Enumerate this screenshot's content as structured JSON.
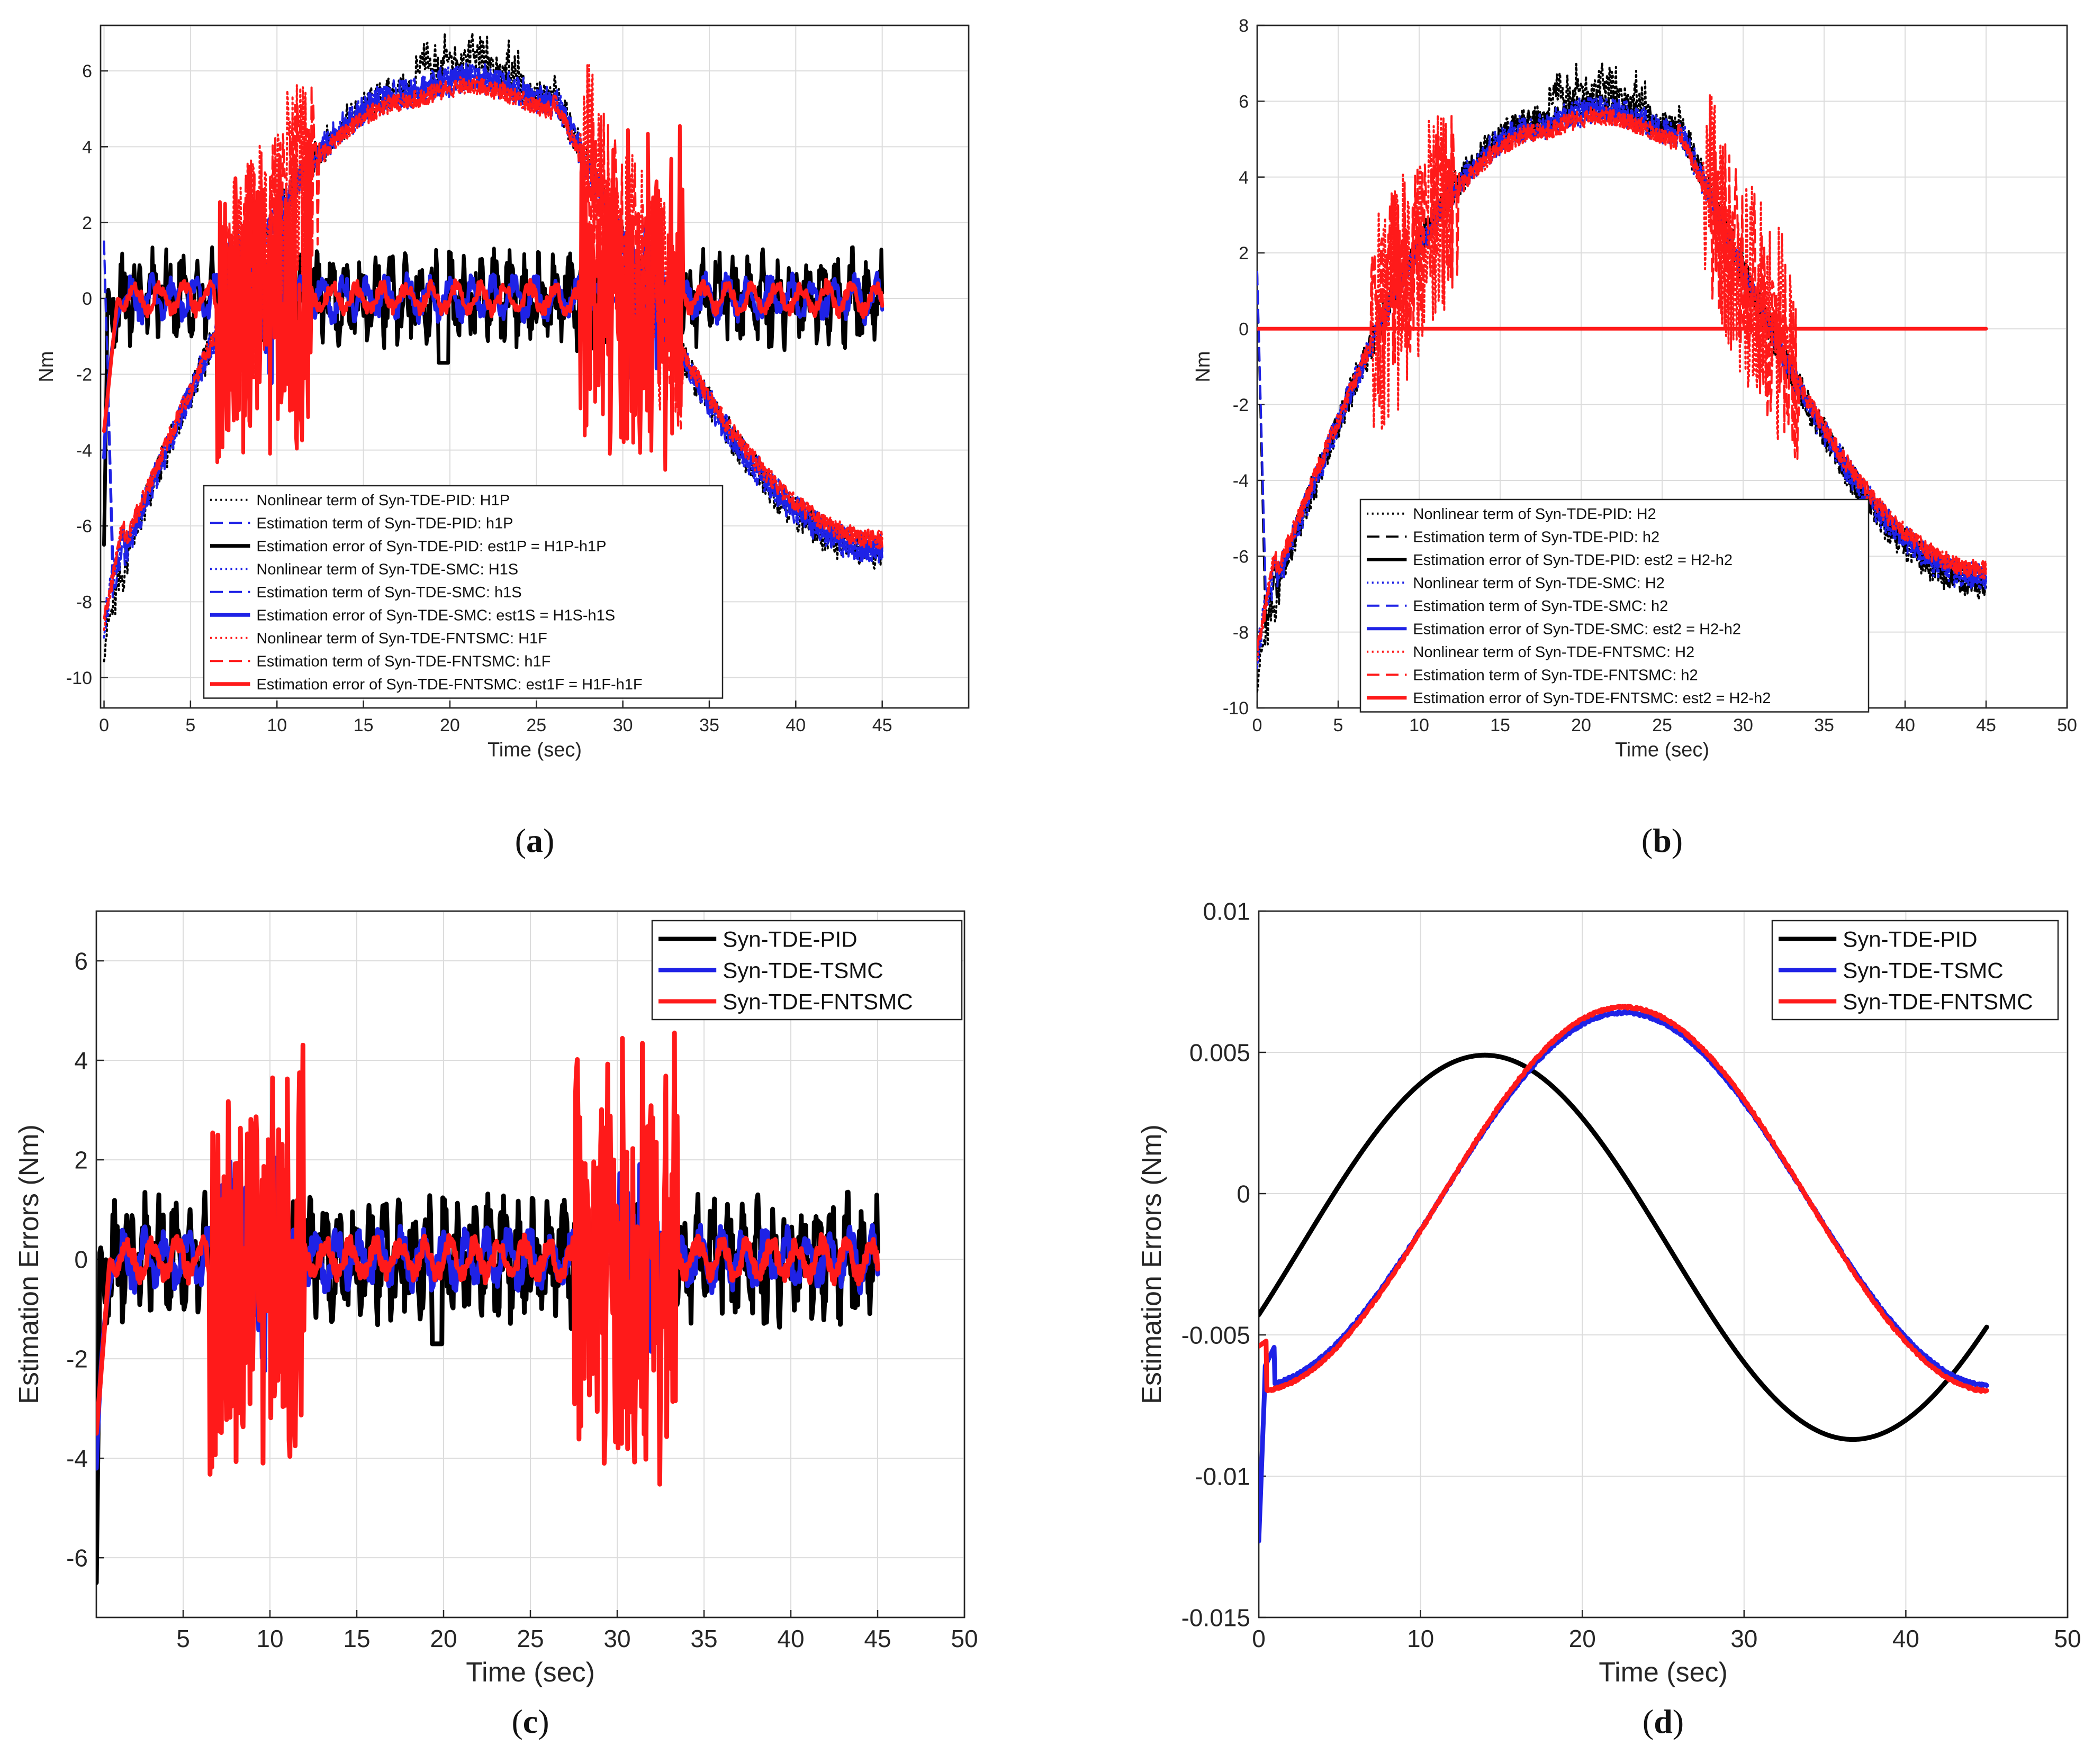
{
  "colors": {
    "black": "#000000",
    "blue": "#1f22e6",
    "red": "#ff1a1a"
  },
  "chart_data": [
    {
      "id": "a",
      "panel_label": "a",
      "type": "line",
      "xlabel": "Time (sec)",
      "ylabel": "Nm",
      "xlim": [
        -0.2,
        50
      ],
      "ylim": [
        -10.8,
        7.2
      ],
      "xticks": [
        0,
        5,
        10,
        15,
        20,
        25,
        30,
        35,
        40,
        45
      ],
      "yticks": [
        -10,
        -8,
        -6,
        -4,
        -2,
        0,
        2,
        4,
        6
      ],
      "legend_position": "lower-center",
      "series": [
        {
          "name": "Nonlinear term of Syn-TDE-PID: H1P",
          "color": "#000000",
          "style": "dotted",
          "kind": "nonlinear",
          "width": 4
        },
        {
          "name": "Estimation term of Syn-TDE-PID: h1P",
          "color": "#1f22e6",
          "style": "dashed",
          "kind": "estimation",
          "width": 4
        },
        {
          "name": "Estimation error of Syn-TDE-PID: est1P = H1P-h1P",
          "color": "#000000",
          "style": "solid",
          "kind": "err_pid",
          "width": 7
        },
        {
          "name": "Nonlinear term of Syn-TDE-SMC: H1S",
          "color": "#1f22e6",
          "style": "dotted",
          "kind": "nonlinear_b",
          "width": 4
        },
        {
          "name": "Estimation term of Syn-TDE-SMC: h1S",
          "color": "#1f22e6",
          "style": "dashed",
          "kind": "estimation_b",
          "width": 4
        },
        {
          "name": "Estimation error of Syn-TDE-SMC: est1S = H1S-h1S",
          "color": "#1f22e6",
          "style": "solid",
          "kind": "err_smc",
          "width": 7
        },
        {
          "name": "Nonlinear term of Syn-TDE-FNTSMC: H1F",
          "color": "#ff1a1a",
          "style": "dotted",
          "kind": "nonlinear_r",
          "width": 4
        },
        {
          "name": "Estimation term of Syn-TDE-FNTSMC: h1F",
          "color": "#ff1a1a",
          "style": "dashed",
          "kind": "estimation_r",
          "width": 4
        },
        {
          "name": "Estimation error of Syn-TDE-FNTSMC: est1F = H1F-h1F",
          "color": "#ff1a1a",
          "style": "solid",
          "kind": "err_fnt",
          "width": 7
        }
      ]
    },
    {
      "id": "b",
      "panel_label": "b",
      "type": "line",
      "xlabel": "Time (sec)",
      "ylabel": "Nm",
      "xlim": [
        0,
        50
      ],
      "ylim": [
        -10,
        8
      ],
      "xticks": [
        0,
        5,
        10,
        15,
        20,
        25,
        30,
        35,
        40,
        45,
        50
      ],
      "yticks": [
        -10,
        -8,
        -6,
        -4,
        -2,
        0,
        2,
        4,
        6,
        8
      ],
      "legend_position": "lower-center",
      "series": [
        {
          "name": "Nonlinear term of Syn-TDE-PID: H2",
          "color": "#000000",
          "style": "dotted",
          "kind": "nonlinear",
          "width": 4
        },
        {
          "name": "Estimation term of Syn-TDE-PID: h2",
          "color": "#000000",
          "style": "dashed",
          "kind": "estimation",
          "width": 4
        },
        {
          "name": "Estimation error of Syn-TDE-PID: est2 = H2-h2",
          "color": "#000000",
          "style": "solid",
          "kind": "zero",
          "width": 6
        },
        {
          "name": "Nonlinear term of Syn-TDE-SMC: H2",
          "color": "#1f22e6",
          "style": "dotted",
          "kind": "nonlinear_b",
          "width": 4
        },
        {
          "name": "Estimation term of Syn-TDE-SMC: h2",
          "color": "#1f22e6",
          "style": "dashed",
          "kind": "estimation_b",
          "width": 4
        },
        {
          "name": "Estimation error of Syn-TDE-SMC: est2 = H2-h2",
          "color": "#1f22e6",
          "style": "solid",
          "kind": "zero",
          "width": 6
        },
        {
          "name": "Nonlinear term of Syn-TDE-FNTSMC: H2",
          "color": "#ff1a1a",
          "style": "dotted",
          "kind": "nonlinear_r",
          "width": 4
        },
        {
          "name": "Estimation term of Syn-TDE-FNTSMC: h2",
          "color": "#ff1a1a",
          "style": "dashed",
          "kind": "estimation_r",
          "width": 4
        },
        {
          "name": "Estimation error of Syn-TDE-FNTSMC: est2 = H2-h2",
          "color": "#ff1a1a",
          "style": "solid",
          "kind": "zero",
          "width": 7
        }
      ]
    },
    {
      "id": "c",
      "panel_label": "c",
      "type": "line",
      "xlabel": "Time (sec)",
      "ylabel": "Estimation Errors (Nm)",
      "xlim": [
        0,
        50
      ],
      "ylim": [
        -7.2,
        7
      ],
      "xticks": [
        5,
        10,
        15,
        20,
        25,
        30,
        35,
        40,
        45,
        50
      ],
      "yticks": [
        -6,
        -4,
        -2,
        0,
        2,
        4,
        6
      ],
      "legend_position": "top-right",
      "series": [
        {
          "name": "Syn-TDE-PID",
          "color": "#000000",
          "style": "solid",
          "kind": "err_pid",
          "width": 9
        },
        {
          "name": "Syn-TDE-TSMC",
          "color": "#1f22e6",
          "style": "solid",
          "kind": "err_smc",
          "width": 9
        },
        {
          "name": "Syn-TDE-FNTSMC",
          "color": "#ff1a1a",
          "style": "solid",
          "kind": "err_fnt",
          "width": 9
        }
      ]
    },
    {
      "id": "d",
      "panel_label": "d",
      "type": "line",
      "xlabel": "Time (sec)",
      "ylabel": "Estimation Errors (Nm)",
      "xlim": [
        0,
        50
      ],
      "ylim": [
        -0.015,
        0.01
      ],
      "xticks": [
        0,
        10,
        20,
        30,
        40,
        50
      ],
      "yticks": [
        -0.015,
        -0.01,
        -0.005,
        0,
        0.005,
        0.01
      ],
      "ytick_labels": [
        "-0.015",
        "-0.01",
        "-0.005",
        "0",
        "0.005",
        "0.01"
      ],
      "legend_position": "top-right",
      "series": [
        {
          "name": "Syn-TDE-PID",
          "color": "#000000",
          "style": "solid",
          "kind": "sine_pid",
          "width": 9
        },
        {
          "name": "Syn-TDE-TSMC",
          "color": "#1f22e6",
          "style": "solid",
          "kind": "sine_smc",
          "width": 9
        },
        {
          "name": "Syn-TDE-FNTSMC",
          "color": "#ff1a1a",
          "style": "solid",
          "kind": "sine_fnt",
          "width": 9
        }
      ]
    }
  ]
}
